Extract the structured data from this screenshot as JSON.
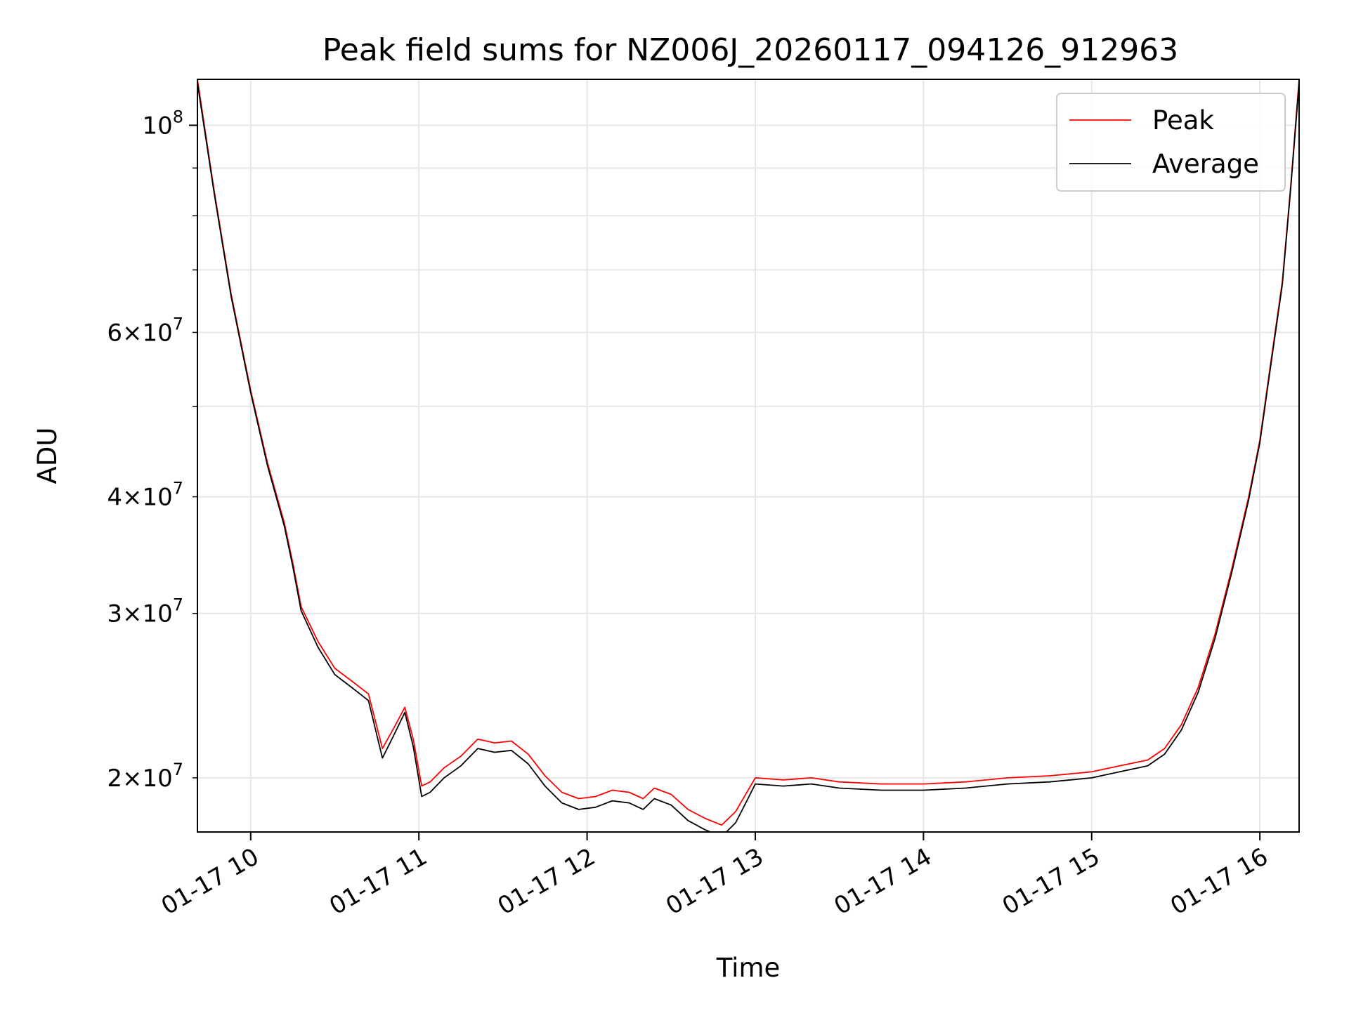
{
  "chart_data": {
    "type": "line",
    "title": "Peak field sums for NZ006J_20260117_094126_912963",
    "xlabel": "Time",
    "ylabel": "ADU",
    "yscale": "log",
    "grid": true,
    "legend_position": "top-right",
    "xlim": [
      "2026-01-17 09:41",
      "2026-01-17 16:14"
    ],
    "ylim": [
      17500000,
      112000000
    ],
    "x_ticks": [
      {
        "value": "2026-01-17 10:00",
        "label": "01-17 10"
      },
      {
        "value": "2026-01-17 11:00",
        "label": "01-17 11"
      },
      {
        "value": "2026-01-17 12:00",
        "label": "01-17 12"
      },
      {
        "value": "2026-01-17 13:00",
        "label": "01-17 13"
      },
      {
        "value": "2026-01-17 14:00",
        "label": "01-17 14"
      },
      {
        "value": "2026-01-17 15:00",
        "label": "01-17 15"
      },
      {
        "value": "2026-01-17 16:00",
        "label": "01-17 16"
      }
    ],
    "y_major_ticks": [
      {
        "value": 100000000,
        "base": "10",
        "exp": "8"
      }
    ],
    "y_minor_ticks": [
      {
        "value": 20000000,
        "mant": "2",
        "base": "10",
        "exp": "7"
      },
      {
        "value": 30000000,
        "mant": "3",
        "base": "10",
        "exp": "7"
      },
      {
        "value": 40000000,
        "mant": "4",
        "base": "10",
        "exp": "7"
      },
      {
        "value": 60000000,
        "mant": "6",
        "base": "10",
        "exp": "7"
      }
    ],
    "y_minor_unlabeled": [
      50000000,
      70000000,
      80000000,
      90000000
    ],
    "series": [
      {
        "name": "Peak",
        "color": "#ff0000",
        "x": [
          "2026-01-17 09:41",
          "2026-01-17 09:47",
          "2026-01-17 09:53",
          "2026-01-17 10:00",
          "2026-01-17 10:06",
          "2026-01-17 10:12",
          "2026-01-17 10:15",
          "2026-01-17 10:18",
          "2026-01-17 10:24",
          "2026-01-17 10:30",
          "2026-01-17 10:36",
          "2026-01-17 10:42",
          "2026-01-17 10:47",
          "2026-01-17 10:51",
          "2026-01-17 10:55",
          "2026-01-17 10:58",
          "2026-01-17 11:01",
          "2026-01-17 11:04",
          "2026-01-17 11:09",
          "2026-01-17 11:15",
          "2026-01-17 11:21",
          "2026-01-17 11:27",
          "2026-01-17 11:33",
          "2026-01-17 11:39",
          "2026-01-17 11:45",
          "2026-01-17 11:51",
          "2026-01-17 11:57",
          "2026-01-17 12:03",
          "2026-01-17 12:09",
          "2026-01-17 12:15",
          "2026-01-17 12:20",
          "2026-01-17 12:24",
          "2026-01-17 12:30",
          "2026-01-17 12:36",
          "2026-01-17 12:42",
          "2026-01-17 12:48",
          "2026-01-17 12:53",
          "2026-01-17 12:57",
          "2026-01-17 13:00",
          "2026-01-17 13:10",
          "2026-01-17 13:20",
          "2026-01-17 13:30",
          "2026-01-17 13:45",
          "2026-01-17 14:00",
          "2026-01-17 14:15",
          "2026-01-17 14:30",
          "2026-01-17 14:45",
          "2026-01-17 15:00",
          "2026-01-17 15:10",
          "2026-01-17 15:20",
          "2026-01-17 15:26",
          "2026-01-17 15:32",
          "2026-01-17 15:38",
          "2026-01-17 15:44",
          "2026-01-17 15:50",
          "2026-01-17 15:56",
          "2026-01-17 16:00",
          "2026-01-17 16:04",
          "2026-01-17 16:08",
          "2026-01-17 16:11",
          "2026-01-17 16:14"
        ],
        "values": [
          112000000,
          85000000,
          66000000,
          52000000,
          43500000,
          37500000,
          34000000,
          30500000,
          28000000,
          26200000,
          25400000,
          24600000,
          21500000,
          22600000,
          23800000,
          22000000,
          19600000,
          19800000,
          20500000,
          21100000,
          22000000,
          21800000,
          21900000,
          21200000,
          20100000,
          19300000,
          19000000,
          19100000,
          19400000,
          19300000,
          19000000,
          19500000,
          19200000,
          18500000,
          18100000,
          17800000,
          18400000,
          19300000,
          20000000,
          19900000,
          20000000,
          19800000,
          19700000,
          19700000,
          19800000,
          20000000,
          20100000,
          20300000,
          20600000,
          20900000,
          21500000,
          22800000,
          25000000,
          28500000,
          33500000,
          40000000,
          46000000,
          56000000,
          68000000,
          86000000,
          112000000
        ]
      },
      {
        "name": "Average",
        "color": "#000000",
        "x": [
          "2026-01-17 09:41",
          "2026-01-17 09:47",
          "2026-01-17 09:53",
          "2026-01-17 10:00",
          "2026-01-17 10:06",
          "2026-01-17 10:12",
          "2026-01-17 10:15",
          "2026-01-17 10:18",
          "2026-01-17 10:24",
          "2026-01-17 10:30",
          "2026-01-17 10:36",
          "2026-01-17 10:42",
          "2026-01-17 10:47",
          "2026-01-17 10:51",
          "2026-01-17 10:55",
          "2026-01-17 10:58",
          "2026-01-17 11:01",
          "2026-01-17 11:04",
          "2026-01-17 11:09",
          "2026-01-17 11:15",
          "2026-01-17 11:21",
          "2026-01-17 11:27",
          "2026-01-17 11:33",
          "2026-01-17 11:39",
          "2026-01-17 11:45",
          "2026-01-17 11:51",
          "2026-01-17 11:57",
          "2026-01-17 12:03",
          "2026-01-17 12:09",
          "2026-01-17 12:15",
          "2026-01-17 12:20",
          "2026-01-17 12:24",
          "2026-01-17 12:30",
          "2026-01-17 12:36",
          "2026-01-17 12:42",
          "2026-01-17 12:48",
          "2026-01-17 12:53",
          "2026-01-17 12:57",
          "2026-01-17 13:00",
          "2026-01-17 13:10",
          "2026-01-17 13:20",
          "2026-01-17 13:30",
          "2026-01-17 13:45",
          "2026-01-17 14:00",
          "2026-01-17 14:15",
          "2026-01-17 14:30",
          "2026-01-17 14:45",
          "2026-01-17 15:00",
          "2026-01-17 15:10",
          "2026-01-17 15:20",
          "2026-01-17 15:26",
          "2026-01-17 15:32",
          "2026-01-17 15:38",
          "2026-01-17 15:44",
          "2026-01-17 15:50",
          "2026-01-17 15:56",
          "2026-01-17 16:00",
          "2026-01-17 16:04",
          "2026-01-17 16:08",
          "2026-01-17 16:11",
          "2026-01-17 16:14"
        ],
        "values": [
          111000000,
          84500000,
          65600000,
          51700000,
          43200000,
          37200000,
          33700000,
          30200000,
          27600000,
          25800000,
          25000000,
          24200000,
          21000000,
          22200000,
          23500000,
          21600000,
          19100000,
          19300000,
          20000000,
          20600000,
          21500000,
          21300000,
          21400000,
          20700000,
          19600000,
          18800000,
          18500000,
          18600000,
          18900000,
          18800000,
          18500000,
          19000000,
          18700000,
          18000000,
          17600000,
          17300000,
          17900000,
          18900000,
          19700000,
          19600000,
          19700000,
          19500000,
          19400000,
          19400000,
          19500000,
          19700000,
          19800000,
          20000000,
          20300000,
          20600000,
          21200000,
          22500000,
          24700000,
          28200000,
          33200000,
          39700000,
          45700000,
          55600000,
          67500000,
          85500000,
          111000000
        ]
      }
    ]
  }
}
